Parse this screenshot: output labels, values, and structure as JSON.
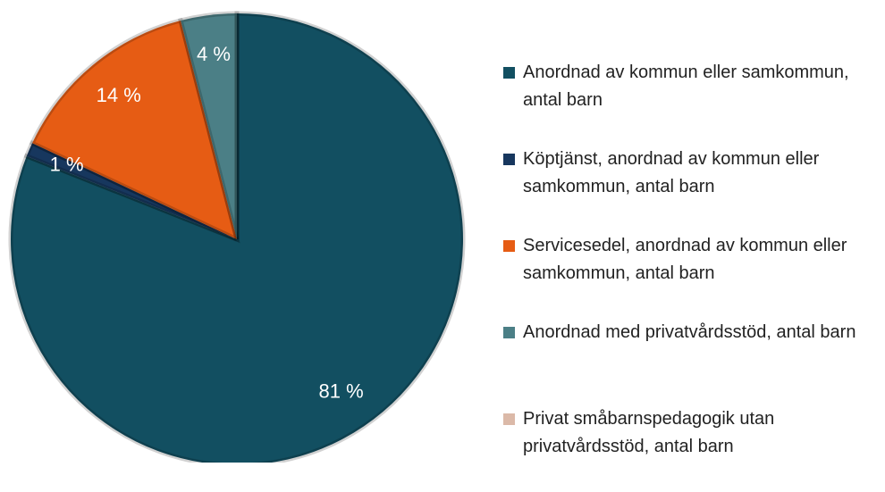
{
  "chart_data": {
    "type": "pie",
    "categories": [
      "Anordnad av kommun eller samkommun, antal barn",
      "Köptjänst, anordnad av kommun eller samkommun, antal barn",
      "Servicesedel, anordnad av kommun eller samkommun, antal barn",
      "Anordnad med privatvårdsstöd, antal barn",
      "Privat småbarnspedagogik utan privatvårdsstöd, antal barn"
    ],
    "values": [
      81,
      1,
      14,
      4,
      0
    ],
    "value_labels": [
      "81 %",
      "1 %",
      "14 %",
      "4 %",
      null
    ],
    "colors": [
      "#124f61",
      "#17375e",
      "#e65c14",
      "#4b7f86",
      "#dbb9a8"
    ],
    "legend": "right"
  }
}
